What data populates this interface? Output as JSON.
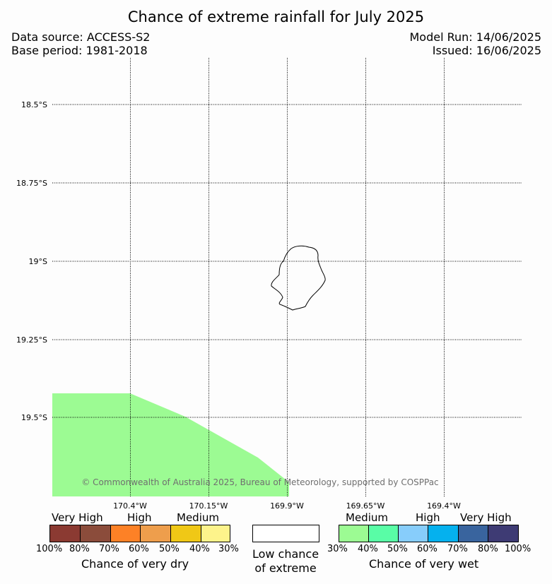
{
  "title": "Chance of extreme rainfall for July 2025",
  "data_source": "Data source: ACCESS-S2",
  "base_period": "Base period: 1981-2018",
  "model_run": "Model Run: 14/06/2025",
  "issued": "Issued: 16/06/2025",
  "map": {
    "lat_labels": [
      "18.5°S",
      "18.75°S",
      "19°S",
      "19.25°S",
      "19.5°S"
    ],
    "lon_labels": [
      "170.4°W",
      "170.15°W",
      "169.9°W",
      "169.65°W",
      "169.4°W"
    ],
    "copyright": "© Commonwealth of Australia 2025, Bureau of Meteorology, supported by COSPPac",
    "colors": {
      "wet_region": "#9cfb93",
      "coastline": "#000000",
      "grid": "#000000"
    }
  },
  "legend": {
    "dry": {
      "categories": [
        "Very High",
        "High",
        "Medium"
      ],
      "colors": [
        "#8b3a32",
        "#8b4c3b",
        "#fd8126",
        "#ee9e4c",
        "#f0c816",
        "#fdf38b"
      ],
      "ticks": [
        "100%",
        "80%",
        "70%",
        "60%",
        "50%",
        "40%",
        "30%"
      ],
      "caption": "Chance of very dry"
    },
    "low": {
      "caption_line1": "Low chance",
      "caption_line2": "of extreme",
      "color": "#ffffff"
    },
    "wet": {
      "categories": [
        "Medium",
        "High",
        "Very High"
      ],
      "colors": [
        "#9cfb93",
        "#59fda6",
        "#87cdfb",
        "#05b1ee",
        "#39649e",
        "#3e3b74"
      ],
      "ticks": [
        "30%",
        "40%",
        "50%",
        "60%",
        "70%",
        "80%",
        "100%"
      ],
      "caption": "Chance of very wet"
    }
  }
}
